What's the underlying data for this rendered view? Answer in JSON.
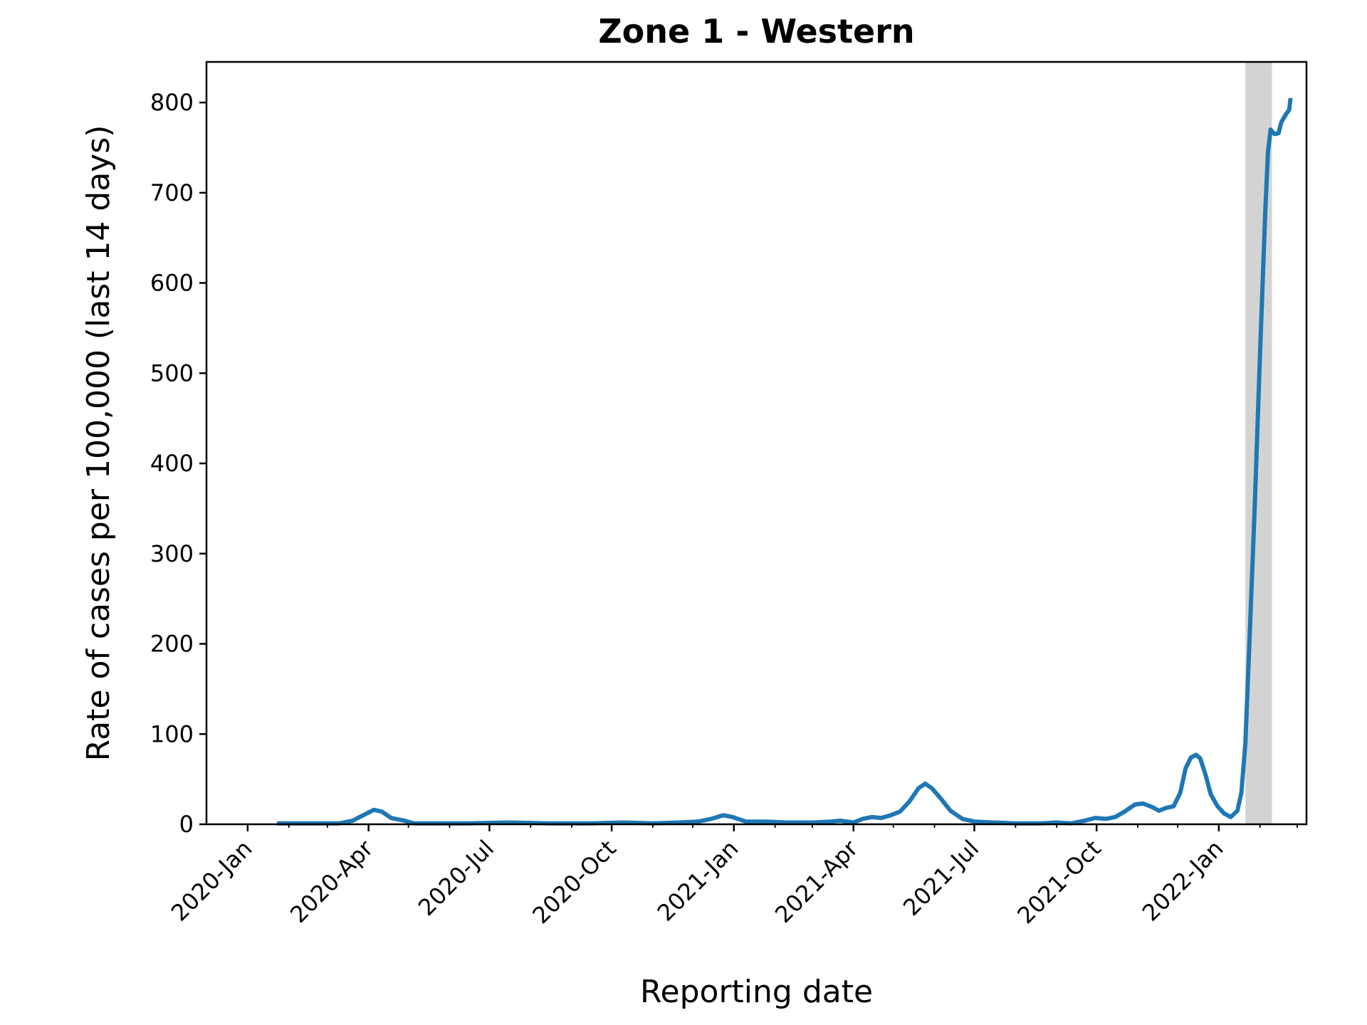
{
  "chart_data": {
    "type": "line",
    "title": "Zone 1 - Western",
    "xlabel": "Reporting date",
    "ylabel": "Rate of cases per 100,000 (last 14 days)",
    "xlim": [
      "2019-12-01",
      "2022-03-08"
    ],
    "ylim": [
      0,
      845
    ],
    "x_ticks": [
      "2020-01-01",
      "2020-04-01",
      "2020-07-01",
      "2020-10-01",
      "2021-01-01",
      "2021-04-01",
      "2021-07-01",
      "2021-10-01",
      "2022-01-01"
    ],
    "x_tick_labels": [
      "2020-Jan",
      "2020-Apr",
      "2020-Jul",
      "2020-Oct",
      "2021-Jan",
      "2021-Apr",
      "2021-Jul",
      "2021-Oct",
      "2022-Jan"
    ],
    "minor_x_ticks": [
      "2020-02-01",
      "2020-03-01",
      "2020-05-01",
      "2020-06-01",
      "2020-08-01",
      "2020-09-01",
      "2020-11-01",
      "2020-12-01",
      "2021-02-01",
      "2021-03-01",
      "2021-05-01",
      "2021-06-01",
      "2021-08-01",
      "2021-09-01",
      "2021-11-01",
      "2021-12-01",
      "2022-02-01",
      "2022-03-01"
    ],
    "y_ticks": [
      0,
      100,
      200,
      300,
      400,
      500,
      600,
      700,
      800
    ],
    "y_tick_labels": [
      "0",
      "100",
      "200",
      "300",
      "400",
      "500",
      "600",
      "700",
      "800"
    ],
    "shaded_region": {
      "x_start": "2022-01-21",
      "x_end": "2022-02-10",
      "color": "#d3d3d3"
    },
    "grid": false,
    "series": [
      {
        "color": "#1f77b4",
        "points": [
          [
            "2020-01-23",
            1
          ],
          [
            "2020-02-15",
            1
          ],
          [
            "2020-03-10",
            1
          ],
          [
            "2020-03-20",
            4
          ],
          [
            "2020-03-28",
            10
          ],
          [
            "2020-04-05",
            16
          ],
          [
            "2020-04-11",
            14
          ],
          [
            "2020-04-18",
            7
          ],
          [
            "2020-04-28",
            4
          ],
          [
            "2020-05-05",
            1
          ],
          [
            "2020-06-15",
            1
          ],
          [
            "2020-07-15",
            2
          ],
          [
            "2020-08-15",
            1
          ],
          [
            "2020-09-15",
            1
          ],
          [
            "2020-10-10",
            2
          ],
          [
            "2020-11-01",
            1
          ],
          [
            "2020-11-20",
            2
          ],
          [
            "2020-12-05",
            3
          ],
          [
            "2020-12-15",
            6
          ],
          [
            "2020-12-24",
            10
          ],
          [
            "2020-12-31",
            8
          ],
          [
            "2021-01-10",
            3
          ],
          [
            "2021-01-25",
            3
          ],
          [
            "2021-02-10",
            2
          ],
          [
            "2021-03-01",
            2
          ],
          [
            "2021-03-15",
            3
          ],
          [
            "2021-03-22",
            4
          ],
          [
            "2021-04-01",
            2
          ],
          [
            "2021-04-08",
            6
          ],
          [
            "2021-04-15",
            8
          ],
          [
            "2021-04-22",
            7
          ],
          [
            "2021-04-29",
            10
          ],
          [
            "2021-05-06",
            14
          ],
          [
            "2021-05-13",
            25
          ],
          [
            "2021-05-20",
            40
          ],
          [
            "2021-05-25",
            45
          ],
          [
            "2021-05-30",
            40
          ],
          [
            "2021-06-06",
            28
          ],
          [
            "2021-06-13",
            15
          ],
          [
            "2021-06-22",
            6
          ],
          [
            "2021-07-01",
            3
          ],
          [
            "2021-07-15",
            2
          ],
          [
            "2021-08-01",
            1
          ],
          [
            "2021-08-20",
            1
          ],
          [
            "2021-09-01",
            2
          ],
          [
            "2021-09-12",
            1
          ],
          [
            "2021-09-22",
            4
          ],
          [
            "2021-09-30",
            7
          ],
          [
            "2021-10-08",
            6
          ],
          [
            "2021-10-15",
            8
          ],
          [
            "2021-10-22",
            14
          ],
          [
            "2021-10-30",
            22
          ],
          [
            "2021-11-05",
            23
          ],
          [
            "2021-11-12",
            19
          ],
          [
            "2021-11-17",
            15
          ],
          [
            "2021-11-22",
            18
          ],
          [
            "2021-11-28",
            20
          ],
          [
            "2021-12-03",
            35
          ],
          [
            "2021-12-07",
            62
          ],
          [
            "2021-12-11",
            74
          ],
          [
            "2021-12-15",
            77
          ],
          [
            "2021-12-18",
            73
          ],
          [
            "2021-12-22",
            55
          ],
          [
            "2021-12-26",
            33
          ],
          [
            "2021-12-31",
            20
          ],
          [
            "2022-01-05",
            12
          ],
          [
            "2022-01-10",
            8
          ],
          [
            "2022-01-15",
            15
          ],
          [
            "2022-01-18",
            35
          ],
          [
            "2022-01-21",
            90
          ],
          [
            "2022-01-24",
            200
          ],
          [
            "2022-01-28",
            350
          ],
          [
            "2022-02-01",
            520
          ],
          [
            "2022-02-05",
            680
          ],
          [
            "2022-02-07",
            745
          ],
          [
            "2022-02-09",
            770
          ],
          [
            "2022-02-10",
            768
          ],
          [
            "2022-02-12",
            765
          ],
          [
            "2022-02-15",
            766
          ],
          [
            "2022-02-17",
            778
          ],
          [
            "2022-02-19",
            783
          ],
          [
            "2022-02-21",
            788
          ],
          [
            "2022-02-23",
            792
          ],
          [
            "2022-02-24",
            805
          ]
        ]
      }
    ]
  }
}
